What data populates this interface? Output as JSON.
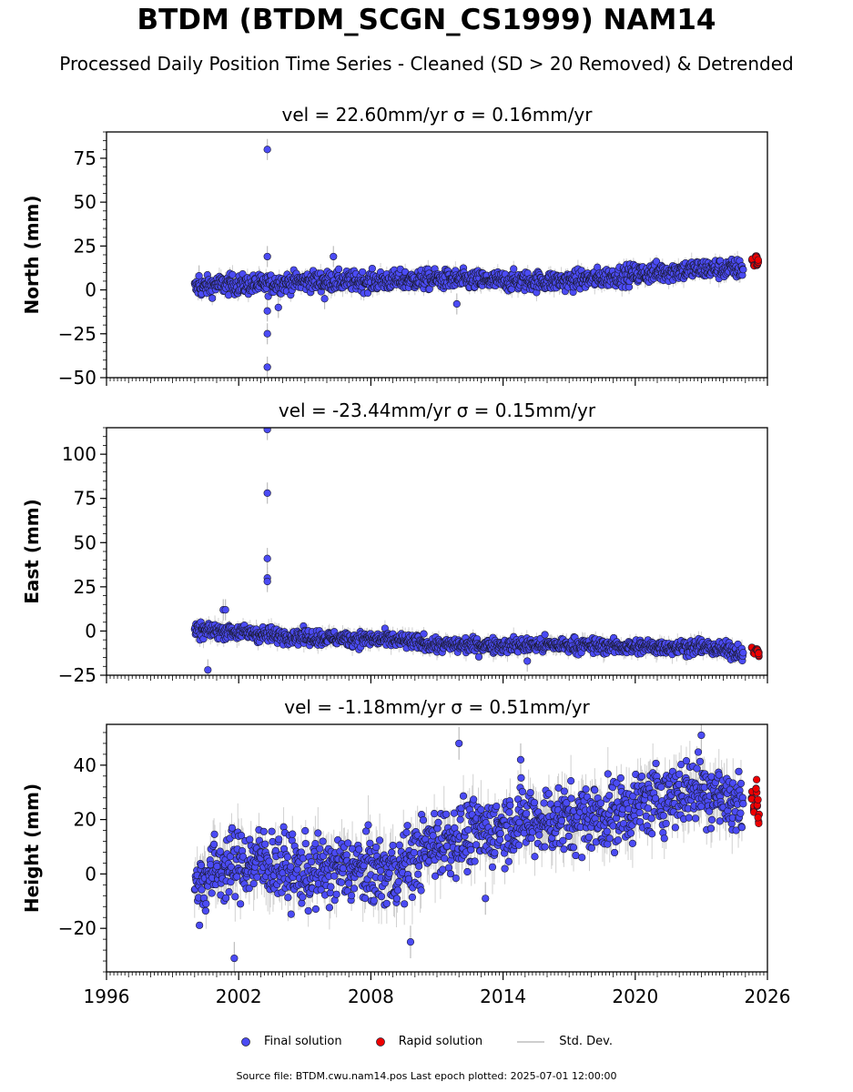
{
  "title": "BTDM (BTDM_SCGN_CS1999) NAM14",
  "subtitle": "Processed Daily Position Time Series - Cleaned (SD > 20 Removed) & Detrended",
  "legend": {
    "final": "Final solution",
    "rapid": "Rapid solution",
    "std": "Std. Dev."
  },
  "footer": "Source file: BTDM.cwu.nam14.pos  Last epoch plotted: 2025-07-01 12:00:00",
  "colors": {
    "final": "#4b4bf5",
    "rapid": "#ee0000",
    "std": "#bdbdbd",
    "marker_edge": "#1a1a2e"
  },
  "chart_data": [
    {
      "type": "scatter",
      "title": "vel = 22.60mm/yr   σ = 0.16mm/yr",
      "ylabel": "North (mm)",
      "xlim": [
        1996,
        2026
      ],
      "ylim": [
        -50,
        90
      ],
      "yticks": [
        -50,
        -25,
        0,
        25,
        50,
        75
      ],
      "ytick_labels": [
        "−50",
        "−25",
        "0",
        "25",
        "50",
        "75"
      ],
      "final_trend": [
        [
          2000.0,
          1
        ],
        [
          2001.0,
          3
        ],
        [
          2003.0,
          3
        ],
        [
          2005.0,
          5
        ],
        [
          2008.0,
          5
        ],
        [
          2011.0,
          6
        ],
        [
          2014.0,
          5
        ],
        [
          2017.0,
          5
        ],
        [
          2020.0,
          9
        ],
        [
          2023.0,
          12
        ],
        [
          2024.9,
          12
        ]
      ],
      "final_scatter": 4,
      "final_outliers": [
        [
          2003.3,
          80
        ],
        [
          2003.3,
          19
        ],
        [
          2003.3,
          -12
        ],
        [
          2003.3,
          -25
        ],
        [
          2003.3,
          -44
        ],
        [
          2003.8,
          -10
        ],
        [
          2006.3,
          19
        ],
        [
          2005.9,
          -5
        ],
        [
          2011.9,
          -8
        ],
        [
          2000.2,
          8
        ]
      ],
      "rapid": [
        [
          2025.3,
          17
        ],
        [
          2025.4,
          14
        ],
        [
          2025.5,
          19
        ],
        [
          2025.55,
          15
        ],
        [
          2025.6,
          16
        ]
      ],
      "rapid_scatter": 2
    },
    {
      "type": "scatter",
      "title": "vel = -23.44mm/yr   σ = 0.15mm/yr",
      "ylabel": "East (mm)",
      "xlim": [
        1996,
        2026
      ],
      "ylim": [
        -25,
        115
      ],
      "yticks": [
        -25,
        0,
        25,
        50,
        75,
        100
      ],
      "ytick_labels": [
        "−25",
        "0",
        "25",
        "50",
        "75",
        "100"
      ],
      "final_trend": [
        [
          2000.0,
          0
        ],
        [
          2001.5,
          0
        ],
        [
          2003.0,
          -2
        ],
        [
          2006.0,
          -4
        ],
        [
          2009.0,
          -5
        ],
        [
          2011.0,
          -8
        ],
        [
          2014.0,
          -8
        ],
        [
          2017.0,
          -8
        ],
        [
          2020.0,
          -9
        ],
        [
          2023.0,
          -9
        ],
        [
          2024.9,
          -12
        ]
      ],
      "final_scatter": 3,
      "final_outliers": [
        [
          2003.3,
          114
        ],
        [
          2003.3,
          78
        ],
        [
          2003.3,
          41
        ],
        [
          2003.3,
          30
        ],
        [
          2003.3,
          28
        ],
        [
          2001.3,
          12
        ],
        [
          2001.4,
          12
        ],
        [
          2000.6,
          -22
        ],
        [
          2015.1,
          -17
        ]
      ],
      "rapid": [
        [
          2025.3,
          -9
        ],
        [
          2025.4,
          -12
        ],
        [
          2025.5,
          -10
        ],
        [
          2025.55,
          -11
        ],
        [
          2025.6,
          -13
        ]
      ],
      "rapid_scatter": 2
    },
    {
      "type": "scatter",
      "title": "vel = -1.18mm/yr   σ = 0.51mm/yr",
      "ylabel": "Height (mm)",
      "xlim": [
        1996,
        2026
      ],
      "ylim": [
        -36,
        55
      ],
      "yticks": [
        -20,
        0,
        20,
        40
      ],
      "ytick_labels": [
        "−20",
        "0",
        "20",
        "40"
      ],
      "xticks": [
        1996,
        2002,
        2008,
        2014,
        2020,
        2026
      ],
      "xtick_labels": [
        "1996",
        "2002",
        "2008",
        "2014",
        "2020",
        "2026"
      ],
      "final_trend": [
        [
          2000.0,
          -5
        ],
        [
          2001.0,
          2
        ],
        [
          2003.0,
          5
        ],
        [
          2005.0,
          0
        ],
        [
          2007.0,
          2
        ],
        [
          2009.0,
          0
        ],
        [
          2011.0,
          12
        ],
        [
          2013.0,
          15
        ],
        [
          2015.0,
          20
        ],
        [
          2017.0,
          20
        ],
        [
          2019.0,
          22
        ],
        [
          2021.0,
          28
        ],
        [
          2023.0,
          32
        ],
        [
          2024.9,
          25
        ]
      ],
      "final_scatter": 9,
      "final_outliers": [
        [
          2012.0,
          48
        ],
        [
          2014.8,
          42
        ],
        [
          2001.8,
          -31
        ],
        [
          2009.8,
          -25
        ],
        [
          2013.2,
          -9
        ],
        [
          2023.0,
          51
        ]
      ],
      "rapid": [
        [
          2025.3,
          30
        ],
        [
          2025.4,
          24
        ],
        [
          2025.5,
          32
        ],
        [
          2025.55,
          27
        ],
        [
          2025.6,
          20
        ]
      ],
      "rapid_scatter": 4
    }
  ]
}
